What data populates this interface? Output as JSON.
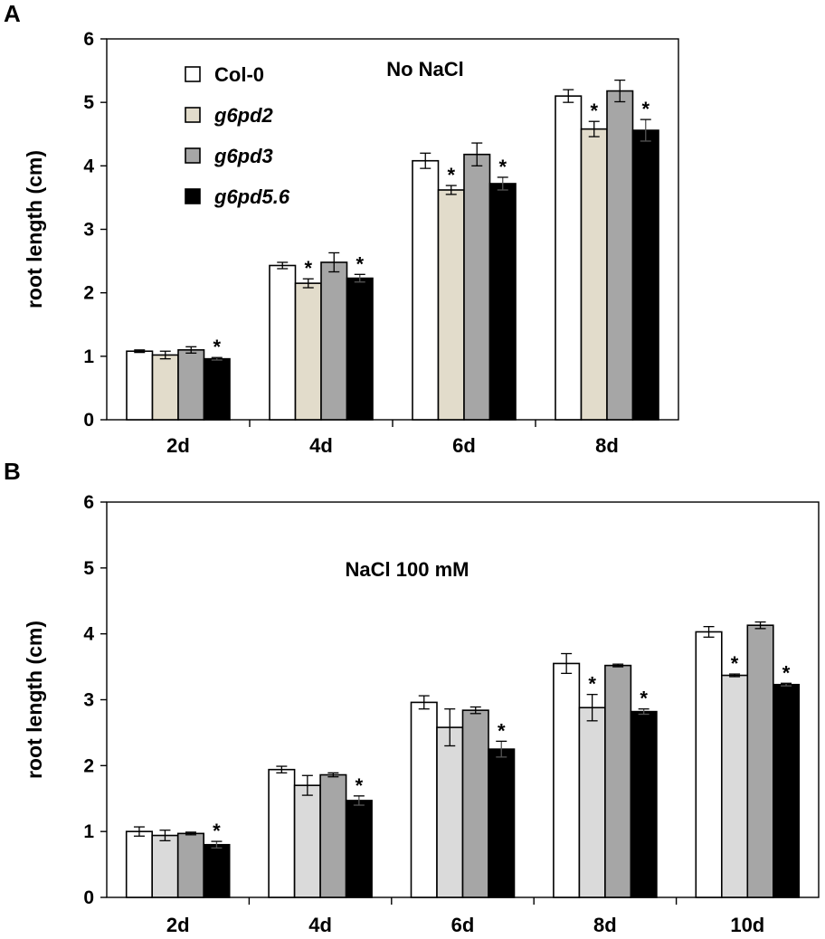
{
  "chart_data": [
    {
      "panel": "A",
      "type": "bar",
      "title": "No NaCl",
      "ylabel": "root length (cm)",
      "xlabel": "",
      "ylim": [
        0,
        6
      ],
      "yticks": [
        0,
        1,
        2,
        3,
        4,
        5,
        6
      ],
      "categories": [
        "2d",
        "4d",
        "6d",
        "8d"
      ],
      "legend": {
        "position": "top-left",
        "italic_from_index": 1
      },
      "series": [
        {
          "name": "Col-0",
          "color": "#ffffff",
          "values": [
            1.08,
            2.43,
            4.08,
            5.1
          ],
          "errors": [
            0.02,
            0.05,
            0.12,
            0.1
          ],
          "significant": [
            false,
            false,
            false,
            false
          ]
        },
        {
          "name": "g6pd2",
          "color": "#e2dccb",
          "values": [
            1.02,
            2.15,
            3.62,
            4.58
          ],
          "errors": [
            0.06,
            0.07,
            0.07,
            0.12
          ],
          "significant": [
            false,
            true,
            true,
            true
          ]
        },
        {
          "name": "g6pd3",
          "color": "#a6a6a6",
          "values": [
            1.1,
            2.48,
            4.18,
            5.18
          ],
          "errors": [
            0.05,
            0.15,
            0.18,
            0.17
          ],
          "significant": [
            false,
            false,
            false,
            false
          ]
        },
        {
          "name": "g6pd5.6",
          "color": "#000000",
          "values": [
            0.96,
            2.23,
            3.72,
            4.56
          ],
          "errors": [
            0.02,
            0.06,
            0.1,
            0.17
          ],
          "significant": [
            true,
            true,
            true,
            true
          ]
        }
      ]
    },
    {
      "panel": "B",
      "type": "bar",
      "title": "NaCl 100 mM",
      "ylabel": "root length (cm)",
      "xlabel": "",
      "ylim": [
        0,
        6
      ],
      "yticks": [
        0,
        1,
        2,
        3,
        4,
        5,
        6
      ],
      "categories": [
        "2d",
        "4d",
        "6d",
        "8d",
        "10d"
      ],
      "series": [
        {
          "name": "Col-0",
          "color": "#ffffff",
          "values": [
            1.0,
            1.94,
            2.96,
            3.55,
            4.03
          ],
          "errors": [
            0.07,
            0.05,
            0.1,
            0.15,
            0.08
          ],
          "significant": [
            false,
            false,
            false,
            false,
            false
          ]
        },
        {
          "name": "g6pd2",
          "color": "#dadada",
          "values": [
            0.94,
            1.7,
            2.58,
            2.88,
            3.37
          ],
          "errors": [
            0.08,
            0.15,
            0.28,
            0.2,
            0.02
          ],
          "significant": [
            false,
            false,
            false,
            true,
            true
          ]
        },
        {
          "name": "g6pd3",
          "color": "#a6a6a6",
          "values": [
            0.97,
            1.86,
            2.84,
            3.52,
            4.13
          ],
          "errors": [
            0.02,
            0.03,
            0.05,
            0.02,
            0.05
          ],
          "significant": [
            false,
            false,
            false,
            false,
            false
          ]
        },
        {
          "name": "g6pd5.6",
          "color": "#000000",
          "values": [
            0.8,
            1.47,
            2.25,
            2.82,
            3.23
          ],
          "errors": [
            0.05,
            0.07,
            0.12,
            0.04,
            0.02
          ],
          "significant": [
            true,
            true,
            true,
            true,
            true
          ]
        }
      ]
    }
  ],
  "significance_marker": "*"
}
